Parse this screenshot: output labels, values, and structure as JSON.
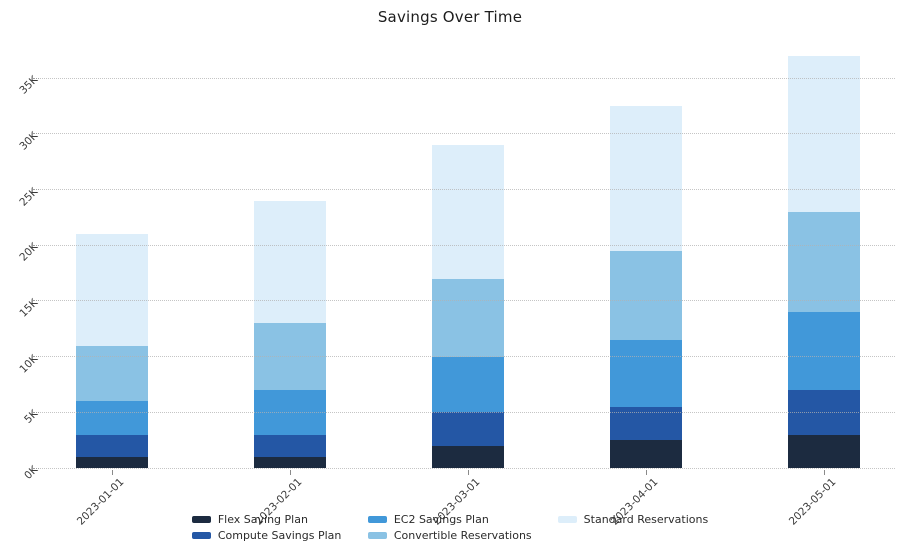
{
  "title": "Savings Over Time",
  "chart_data": {
    "type": "bar",
    "stacked": true,
    "title": "Savings Over Time",
    "xlabel": "",
    "ylabel": "",
    "categories": [
      "2023-01-01",
      "2023-02-01",
      "2023-03-01",
      "2023-04-01",
      "2023-05-01"
    ],
    "series": [
      {
        "name": "Flex Saving Plan",
        "color": "#1c2b40",
        "values": [
          1000,
          1000,
          2000,
          2500,
          3000
        ]
      },
      {
        "name": "Compute Savings Plan",
        "color": "#2457a5",
        "values": [
          2000,
          2000,
          3000,
          3000,
          4000
        ]
      },
      {
        "name": "EC2 Savings Plan",
        "color": "#4198d9",
        "values": [
          3000,
          4000,
          5000,
          6000,
          7000
        ]
      },
      {
        "name": "Convertible Reservations",
        "color": "#8ac2e4",
        "values": [
          5000,
          6000,
          7000,
          8000,
          9000
        ]
      },
      {
        "name": "Standard Reservations",
        "color": "#ddeefa",
        "values": [
          10000,
          11000,
          12000,
          13000,
          14000
        ]
      }
    ],
    "stack_totals": [
      21000,
      24000,
      29000,
      32500,
      37000
    ],
    "y_ticks": [
      "0K",
      "5K",
      "10K",
      "15K",
      "20K",
      "25K",
      "30K",
      "35K"
    ],
    "y_tick_values": [
      0,
      5000,
      10000,
      15000,
      20000,
      25000,
      30000,
      35000
    ],
    "ylim": [
      0,
      37500
    ],
    "grid": "horizontal-dotted",
    "tick_label_rotation_deg": 45,
    "legend_position": "bottom-center",
    "legend_columns": [
      [
        0,
        1
      ],
      [
        2,
        3
      ],
      [
        4
      ]
    ]
  }
}
